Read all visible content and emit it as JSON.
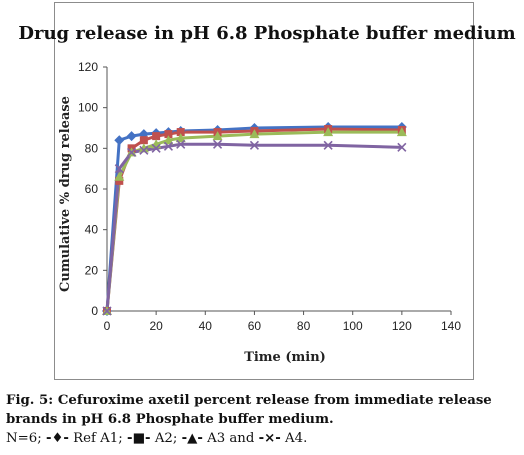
{
  "chart_data": {
    "type": "line",
    "title": "Drug release in pH 6.8 Phosphate buffer medium",
    "xlabel": "Time (min)",
    "ylabel": "Cumulative % drug release",
    "xlim": [
      0,
      140
    ],
    "ylim": [
      0,
      120
    ],
    "xticks": [
      0,
      20,
      40,
      60,
      80,
      100,
      120,
      140
    ],
    "yticks": [
      0,
      20,
      40,
      60,
      80,
      100,
      120
    ],
    "grid": false,
    "legend": "none",
    "x": [
      0,
      5,
      10,
      15,
      20,
      25,
      30,
      45,
      60,
      90,
      120
    ],
    "series": [
      {
        "marker": "diamond",
        "color": "#4472c4",
        "values": [
          0,
          84,
          86,
          87,
          87.5,
          88,
          88.5,
          89,
          90,
          90.5,
          90.5
        ]
      },
      {
        "marker": "square",
        "color": "#c0504d",
        "values": [
          0,
          64,
          80,
          84,
          86,
          87,
          88,
          88,
          88.5,
          89.5,
          89
        ]
      },
      {
        "marker": "triangle",
        "color": "#9bbb59",
        "values": [
          0,
          66,
          78,
          80,
          82,
          84,
          85,
          86,
          87,
          88,
          88
        ]
      },
      {
        "marker": "x",
        "color": "#8064a2",
        "values": [
          0,
          70,
          78,
          79,
          80,
          81,
          82,
          82,
          81.5,
          81.5,
          80.5
        ]
      }
    ]
  },
  "caption": {
    "fig_label": "Fig. 5:",
    "text": " Cefuroxime axetil percent release from immediate release brands in pH 6.8 Phosphate buffer medium.",
    "n_label": "N=6;",
    "legend_items": [
      {
        "marker": "-♦-",
        "label": "Ref A1;",
        "color": "#4472c4"
      },
      {
        "marker": "-■-",
        "label": "A2;",
        "color": "#c0504d"
      },
      {
        "marker": "-▲-",
        "label": "A3 and",
        "color": "#9bbb59"
      },
      {
        "marker": "-×-",
        "label": "A4.",
        "color": "#8064a2"
      }
    ]
  }
}
